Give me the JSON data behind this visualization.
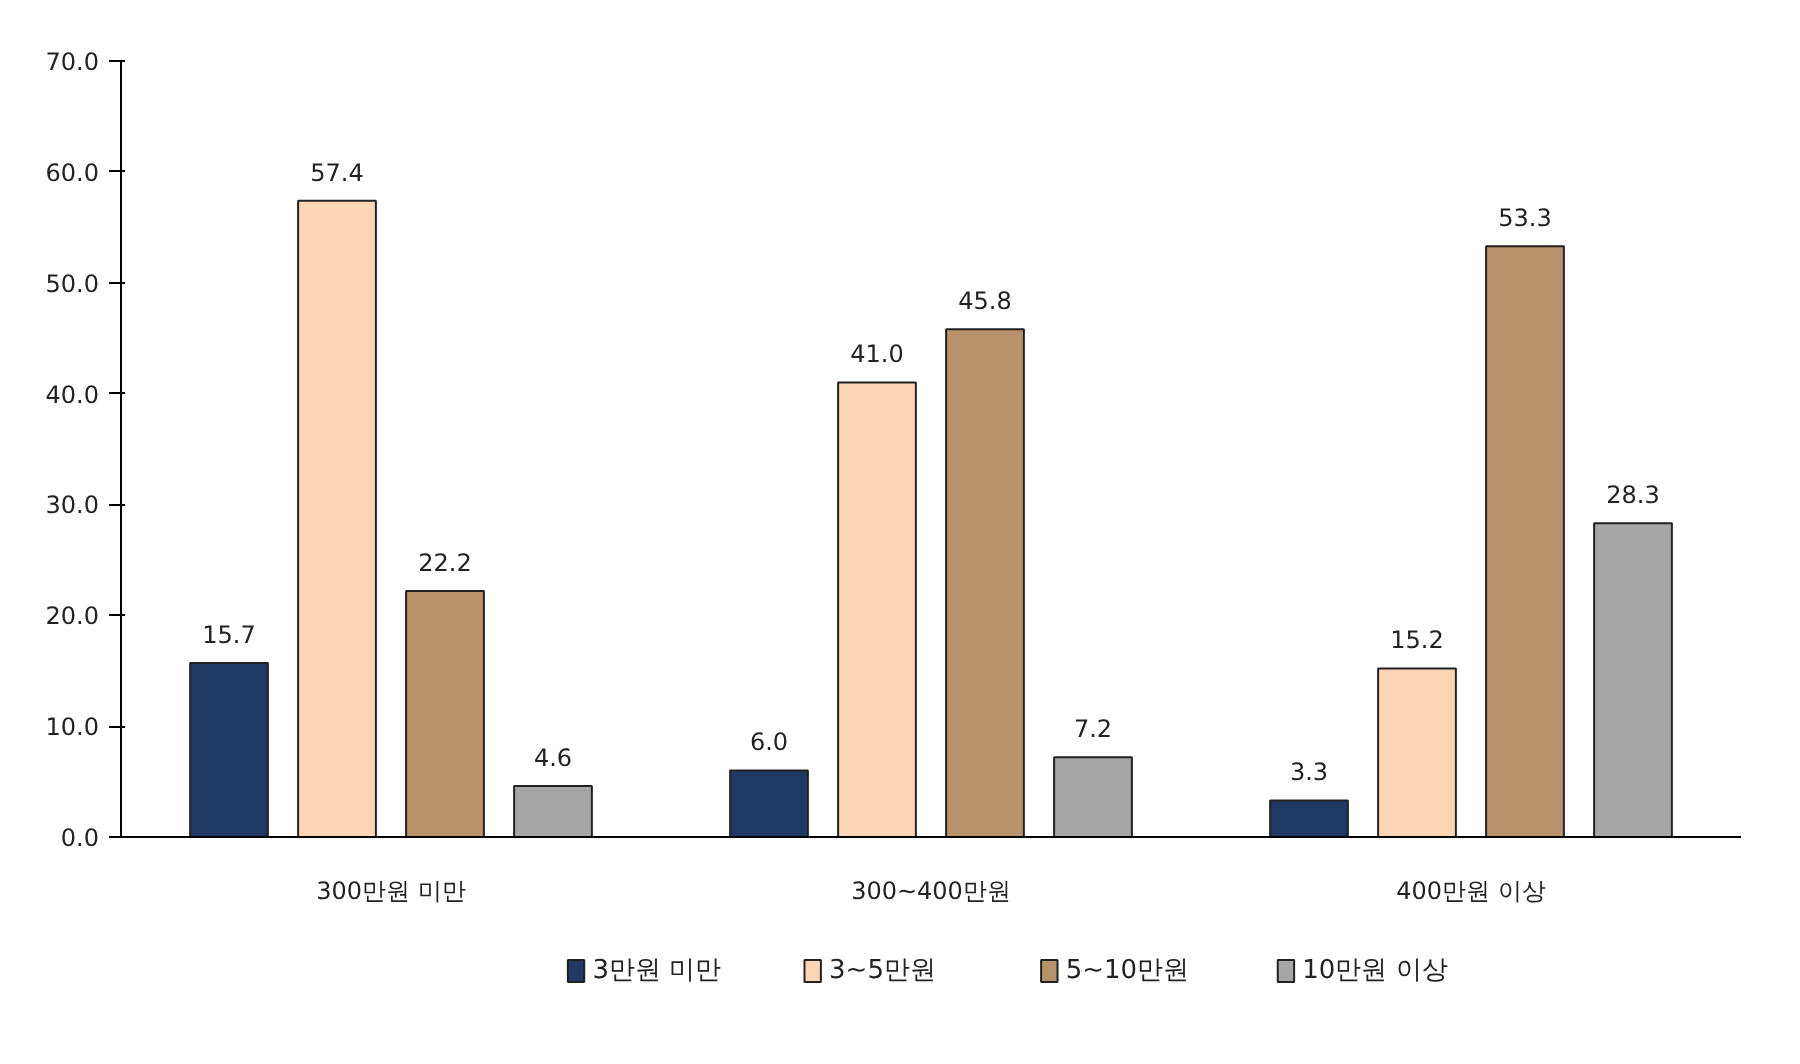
{
  "chart_data": {
    "type": "bar",
    "categories": [
      "300만원 미만",
      "300~400만원",
      "400만원 이상"
    ],
    "series": [
      {
        "name": "3만원 미만",
        "color": "#1f3864",
        "values": [
          15.7,
          6.0,
          3.3
        ],
        "value_labels": [
          "15.7",
          "6.0",
          "3.3"
        ]
      },
      {
        "name": "3~5만원",
        "color": "#fcd5b4",
        "values": [
          57.4,
          41.0,
          15.2
        ],
        "value_labels": [
          "57.4",
          "41.0",
          "15.2"
        ]
      },
      {
        "name": "5~10만원",
        "color": "#b8926a",
        "values": [
          22.2,
          45.8,
          53.3
        ],
        "value_labels": [
          "22.2",
          "45.8",
          "53.3"
        ]
      },
      {
        "name": "10만원 이상",
        "color": "#a6a6a6",
        "values": [
          4.6,
          7.2,
          28.3
        ],
        "value_labels": [
          "4.6",
          "7.2",
          "28.3"
        ]
      }
    ],
    "ylim": [
      0,
      70
    ],
    "yticks": [
      {
        "value": 0,
        "label": "0.0"
      },
      {
        "value": 10,
        "label": "10.0"
      },
      {
        "value": 20,
        "label": "20.0"
      },
      {
        "value": 30,
        "label": "30.0"
      },
      {
        "value": 40,
        "label": "40.0"
      },
      {
        "value": 50,
        "label": "50.0"
      },
      {
        "value": 60,
        "label": "60.0"
      },
      {
        "value": 70,
        "label": "70.0"
      }
    ],
    "grid": false,
    "legend": "bottom"
  }
}
